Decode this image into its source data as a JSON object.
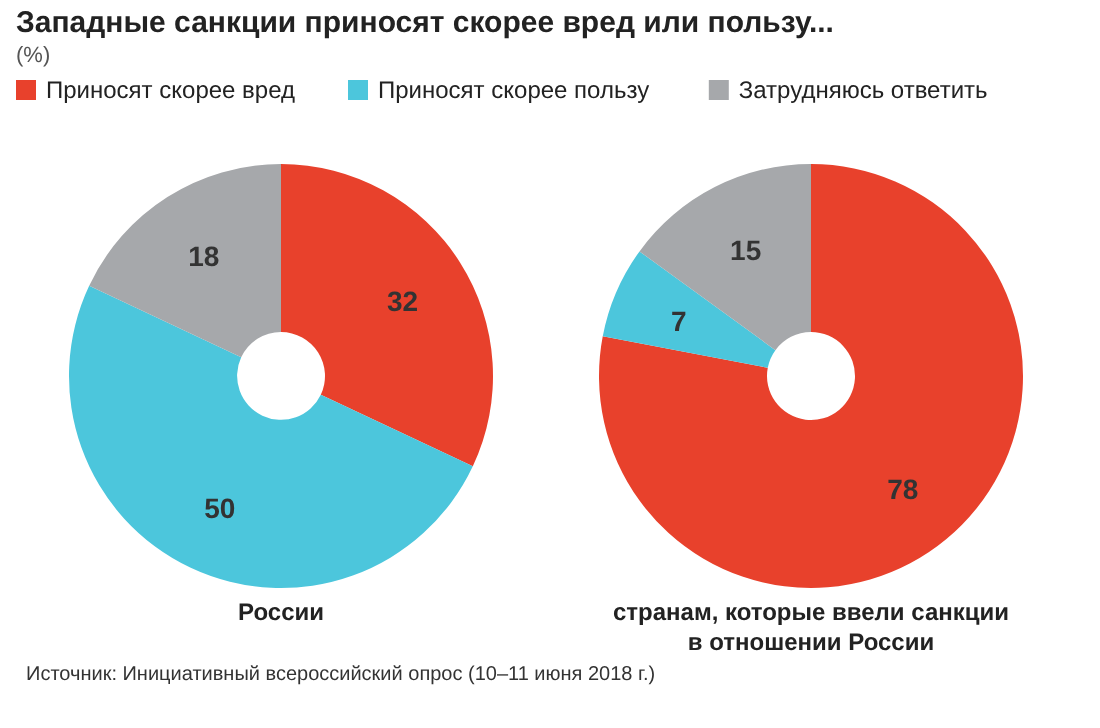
{
  "chart_data": [
    {
      "type": "donut",
      "title": "Западные санкции приносят скорее вред или пользу...",
      "subtitle": "(%)",
      "xlabel": "России",
      "categories": [
        "Приносят скорее вред",
        "Приносят скорее пользу",
        "Затрудняюсь ответить"
      ],
      "values": [
        32,
        50,
        18
      ],
      "colors": [
        "#e8412c",
        "#4cc6dc",
        "#a6a8ab"
      ],
      "data_labels": true,
      "legend": "top"
    },
    {
      "type": "donut",
      "xlabel": "странам, которые ввели санкции\nв отношении России",
      "values": [
        78,
        7,
        15
      ],
      "colors": [
        "#e8412c",
        "#4cc6dc",
        "#a6a8ab"
      ],
      "data_labels": true,
      "annotations": [
        "Источник: Инициативный всероссийский опрос (10–11 июня 2018 г.)"
      ]
    }
  ]
}
